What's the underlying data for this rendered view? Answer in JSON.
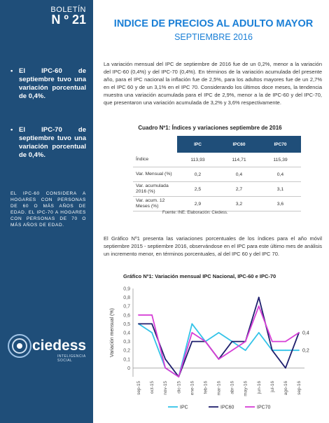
{
  "sidebar": {
    "boletin_label": "BOLETÍN",
    "boletin_number": "N º 21",
    "bullet1": "El IPC-60 de septiembre tuvo una variación porcentual de 0,4%.",
    "bullet2": "El IPC-70 de septiembre tuvo una variación porcentual de 0,4%.",
    "note": "EL IPC-60 CONSIDERA A HOGARES CON PERSONAS DE 60 O MÁS AÑOS DE EDAD. EL IPC-70 A HOGARES CON PERSONAS DE 70 O MÁS AÑOS DE EDAD.",
    "logo_text": "ciedess",
    "logo_sub": "INTELIGENCIA SOCIAL"
  },
  "header": {
    "title": "INDICE DE PRECIOS AL ADULTO MAYOR",
    "subtitle": "SEPTIEMBRE 2016"
  },
  "body": {
    "paragraph1": "La variación mensual del IPC de septiembre de 2016 fue de un 0,2%, menor a la variación del IPC-60 (0,4%) y del IPC-70 (0,4%). En términos de la variación acumulada del presente año, para el IPC nacional la inflación fue de 2,5%, para los adultos mayores fue de un 2,7% en el IPC 60 y de un 3,1% en el IPC 70. Considerando los últimos doce meses, la tendencia muestra una variación acumulada para el IPC de 2,9%, menor a la de IPC-60 y del IPC-70, que presentaron una variación acumulada de 3,2% y 3,6% respectivamente.",
    "paragraph2": "El Gráfico Nº1 presenta las variaciones porcentuales de los índices para el año móvil septiembre 2015 - septiembre 2016, observándose en el IPC para este último mes de análisis un incremento menor, en términos porcentuales, al del IPC 60 y del IPC 70."
  },
  "table": {
    "caption": "Cuadro Nº1: Índices y variaciones septiembre de 2016",
    "headers": [
      "",
      "IPC",
      "IPC60",
      "IPC70"
    ],
    "rows": [
      {
        "label": "Índice",
        "ipc": "113,93",
        "ipc60": "114,71",
        "ipc70": "115,39"
      },
      {
        "label": "Var. Mensual (%)",
        "ipc": "0,2",
        "ipc60": "0,4",
        "ipc70": "0,4"
      },
      {
        "label": "Var. acumulada 2016 (%)",
        "ipc": "2,5",
        "ipc60": "2,7",
        "ipc70": "3,1"
      },
      {
        "label": "Var. acum. 12 Meses (%)",
        "ipc": "2,9",
        "ipc60": "3,2",
        "ipc70": "3,6"
      }
    ],
    "source": "Fuente: INE. Elaboración: Ciedess."
  },
  "chart_data": {
    "type": "line",
    "title": "Gráfico Nº1: Variación mensual IPC Nacional, IPC-60 e IPC-70",
    "xlabel": "",
    "ylabel": "Variación mensual (%)",
    "ylim": [
      0,
      0.9
    ],
    "yticks": [
      "0",
      "0,1",
      "0,2",
      "0,3",
      "0,4",
      "0,5",
      "0,6",
      "0,7",
      "0,8",
      "0,9"
    ],
    "categories": [
      "sep-15",
      "oct-15",
      "nov-15",
      "dic-15",
      "ene-16",
      "feb-16",
      "mar-16",
      "abr-16",
      "may-16",
      "jun-16",
      "jul-16",
      "ago-16",
      "sep-16"
    ],
    "series": [
      {
        "name": "IPC",
        "color": "#33c3e8",
        "values": [
          0.5,
          0.4,
          0.0,
          -0.1,
          0.5,
          0.3,
          0.4,
          0.3,
          0.2,
          0.4,
          0.2,
          0.2,
          0.2
        ]
      },
      {
        "name": "IPC60",
        "color": "#1f1f6e",
        "values": [
          0.5,
          0.5,
          0.1,
          -0.1,
          0.3,
          0.3,
          0.1,
          0.3,
          0.3,
          0.8,
          0.2,
          0.0,
          0.4
        ]
      },
      {
        "name": "IPC70",
        "color": "#d63fd6",
        "values": [
          0.6,
          0.6,
          0.0,
          -0.1,
          0.4,
          0.3,
          0.1,
          0.2,
          0.3,
          0.7,
          0.3,
          0.3,
          0.4
        ]
      }
    ],
    "end_labels": [
      "0,2",
      "0,4"
    ],
    "grid": false,
    "legend": "bottom"
  }
}
